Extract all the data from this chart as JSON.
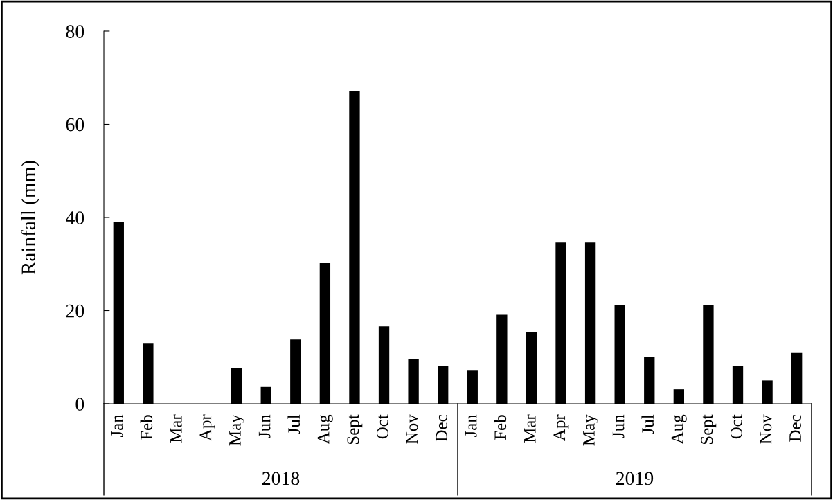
{
  "chart_data": {
    "type": "bar",
    "ylabel": "Rainfall (mm)",
    "categories": [
      "Jan",
      "Feb",
      "Mar",
      "Apr",
      "May",
      "Jun",
      "Jul",
      "Aug",
      "Sept",
      "Oct",
      "Nov",
      "Dec",
      "Jan",
      "Feb",
      "Mar",
      "Apr",
      "May",
      "Jun",
      "Jul",
      "Aug",
      "Sept",
      "Oct",
      "Nov",
      "Dec"
    ],
    "values": [
      39.1,
      12.9,
      0,
      0,
      7.7,
      3.6,
      13.8,
      30.2,
      67.2,
      16.6,
      9.5,
      8.1,
      7.1,
      19.1,
      15.4,
      34.6,
      34.6,
      21.2,
      10.0,
      3.1,
      21.2,
      8.1,
      5.0,
      10.9
    ],
    "color": "#000000",
    "ylim": [
      0,
      80
    ],
    "yticks": [
      0,
      20,
      40,
      60,
      80
    ],
    "annotations": [
      "2018",
      "2019"
    ]
  }
}
